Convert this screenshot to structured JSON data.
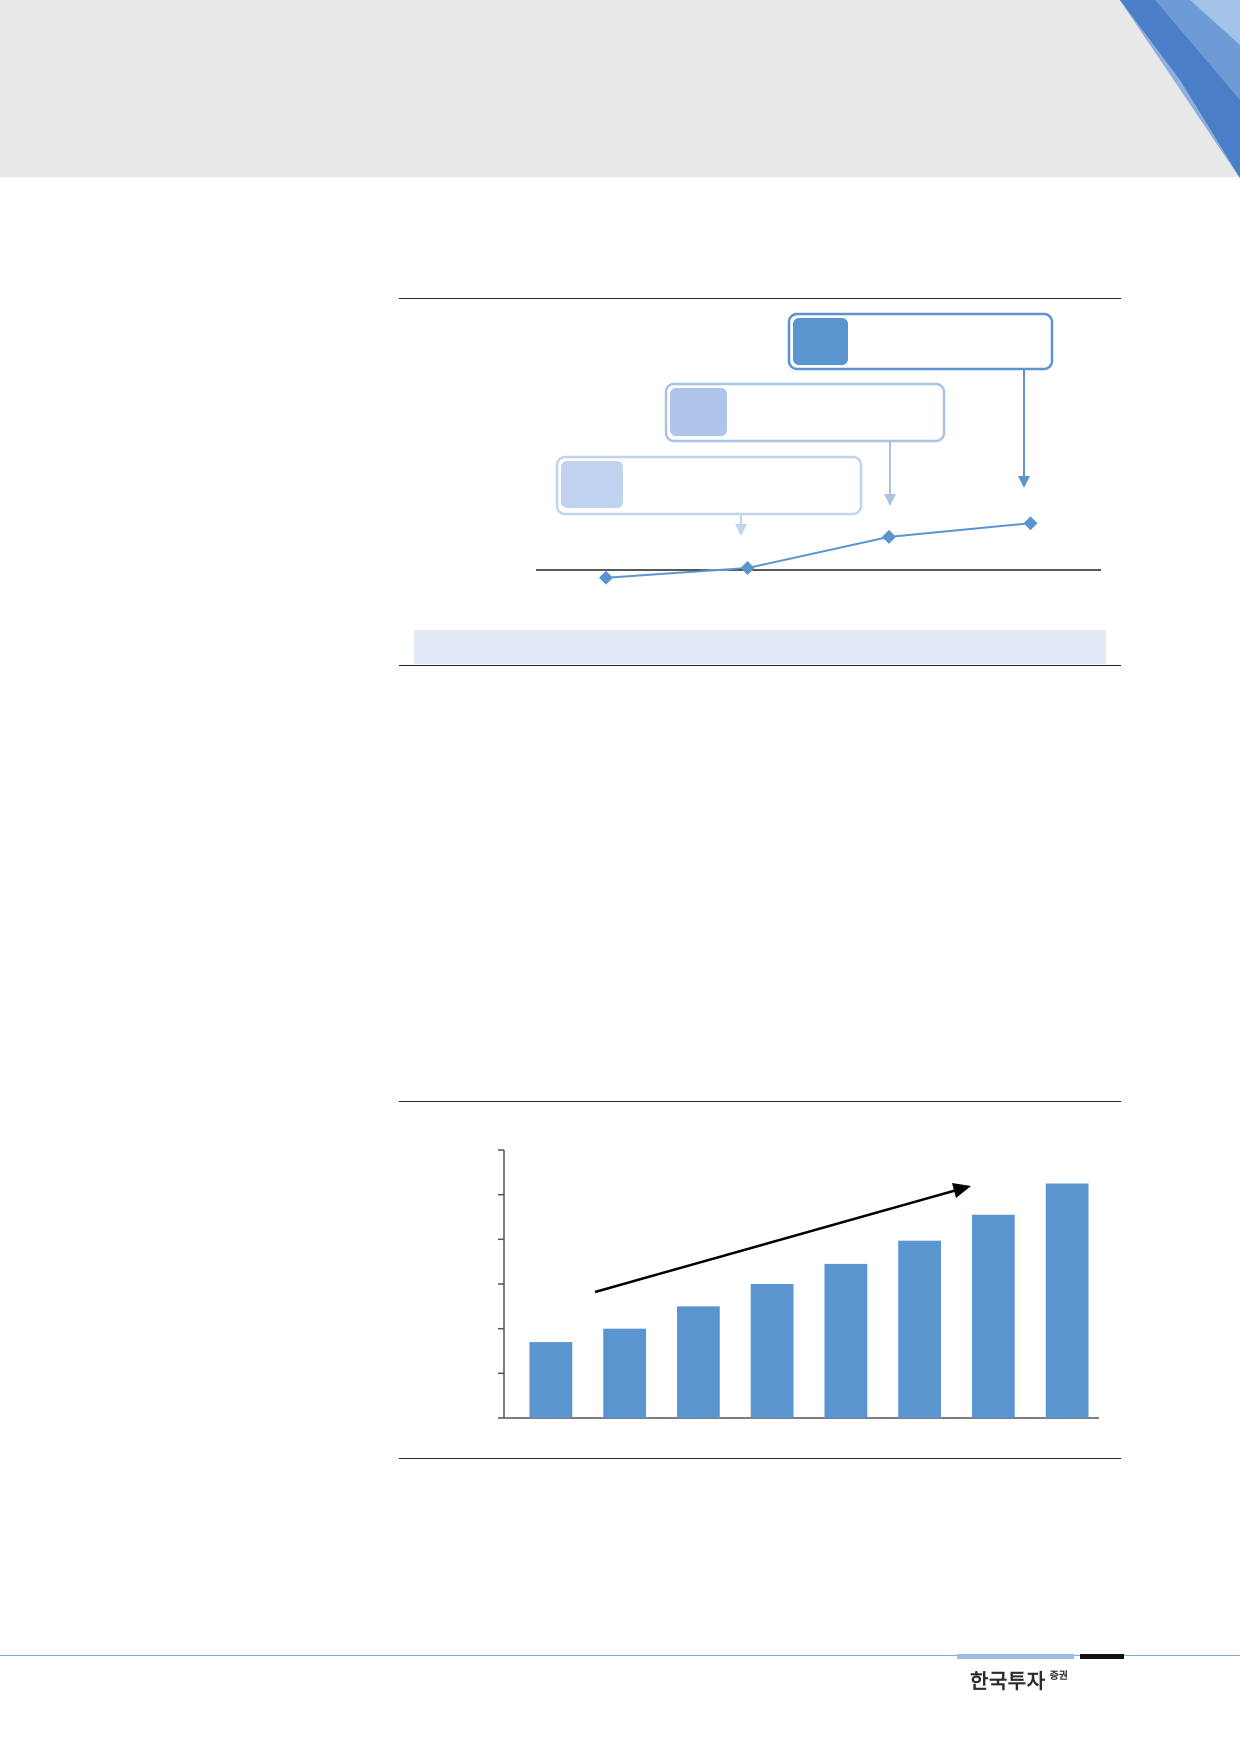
{
  "header": {
    "band_color": "#e8e8e8"
  },
  "figure_1": {
    "accent_color": "#5b95d0",
    "boxes": [
      {
        "level": 1,
        "fill": "#bfd3ee",
        "border": "#c2d4ec"
      },
      {
        "level": 2,
        "fill": "#aec4e8",
        "border": "#aac2e4"
      },
      {
        "level": 3,
        "fill": "#5b95d0",
        "border": "#5b95d0"
      }
    ],
    "trend_points": [
      {
        "x": 1,
        "y": -0.4
      },
      {
        "x": 2,
        "y": 0.1
      },
      {
        "x": 3,
        "y": 1.7
      },
      {
        "x": 4,
        "y": 2.4
      }
    ],
    "baseline_value": 0
  },
  "chart_data": {
    "type": "bar",
    "title": "",
    "categories": [
      "",
      "",
      "",
      "",
      "",
      "",
      "",
      ""
    ],
    "values": [
      1.7,
      2.0,
      2.5,
      3.0,
      3.45,
      3.97,
      4.55,
      5.25
    ],
    "ylim": [
      0,
      6
    ],
    "yticks": [
      0,
      1,
      2,
      3,
      4,
      5,
      6
    ],
    "xlabel": "",
    "ylabel": "",
    "grid": false,
    "bar_color": "#5b95d0",
    "trend_arrow": true
  },
  "footer": {
    "logo_main": "한국투자",
    "logo_sub": "증권",
    "line_color": "#7faed9"
  }
}
